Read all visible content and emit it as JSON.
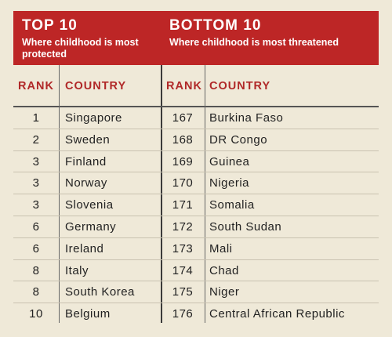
{
  "top": {
    "title": "TOP 10",
    "subtitle": "Where childhood is most protected",
    "rank_header": "RANK",
    "country_header": "COUNTRY",
    "rows": [
      {
        "rank": "1",
        "country": "Singapore"
      },
      {
        "rank": "2",
        "country": "Sweden"
      },
      {
        "rank": "3",
        "country": "Finland"
      },
      {
        "rank": "3",
        "country": "Norway"
      },
      {
        "rank": "3",
        "country": "Slovenia"
      },
      {
        "rank": "6",
        "country": "Germany"
      },
      {
        "rank": "6",
        "country": "Ireland"
      },
      {
        "rank": "8",
        "country": "Italy"
      },
      {
        "rank": "8",
        "country": "South Korea"
      },
      {
        "rank": "10",
        "country": "Belgium"
      }
    ]
  },
  "bottom": {
    "title": "BOTTOM 10",
    "subtitle": "Where childhood is most threatened",
    "rank_header": "RANK",
    "country_header": "COUNTRY",
    "rows": [
      {
        "rank": "167",
        "country": "Burkina Faso"
      },
      {
        "rank": "168",
        "country": "DR Congo"
      },
      {
        "rank": "169",
        "country": "Guinea"
      },
      {
        "rank": "170",
        "country": "Nigeria"
      },
      {
        "rank": "171",
        "country": "Somalia"
      },
      {
        "rank": "172",
        "country": "South Sudan"
      },
      {
        "rank": "173",
        "country": "Mali"
      },
      {
        "rank": "174",
        "country": "Chad"
      },
      {
        "rank": "175",
        "country": "Niger"
      },
      {
        "rank": "176",
        "country": "Central African Republic"
      }
    ]
  },
  "colors": {
    "banner": "#bd2626",
    "header_text": "#b02828",
    "background": "#efe9d8"
  }
}
